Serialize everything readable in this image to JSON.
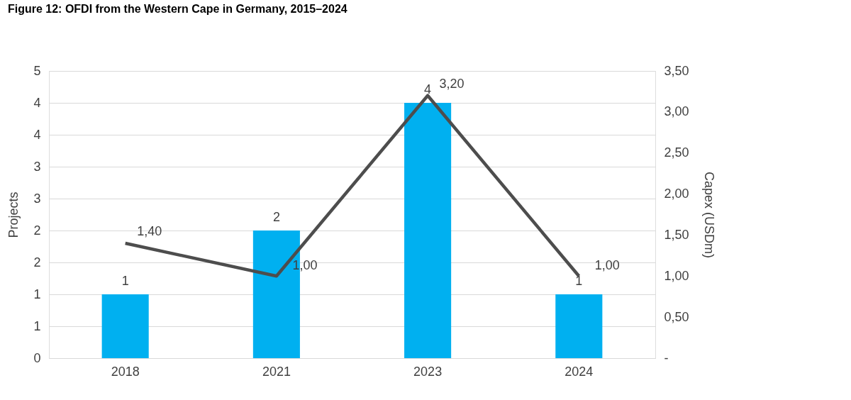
{
  "chart_data": {
    "type": "bar",
    "title": "Figure 12: OFDI from the Western Cape in Germany, 2015–2024",
    "categories": [
      "2018",
      "2021",
      "2023",
      "2024"
    ],
    "series": [
      {
        "color": "#00b0f0",
        "values": [
          1,
          2,
          4,
          1
        ],
        "value_labels": [
          "1",
          "2",
          "4",
          "1"
        ]
      },
      {
        "type": "line",
        "axis": "y2",
        "color": "#4d4d4d",
        "values": [
          1.4,
          1.0,
          3.2,
          1.0
        ],
        "value_labels": [
          "1,40",
          "1,00",
          "3,20",
          "1,00"
        ],
        "marker": "none"
      }
    ],
    "ylabel": "Projects",
    "y2label": "Capex (USDm)",
    "ylim": [
      0,
      4.5
    ],
    "yticks": [
      0,
      {
        "value": 0.5,
        "label": "1"
      },
      1,
      {
        "value": 1.5,
        "label": "2"
      },
      2,
      {
        "value": 2.5,
        "label": "3"
      },
      3,
      {
        "value": 3.5,
        "label": "4"
      },
      4,
      {
        "value": 4.5,
        "label": "5"
      }
    ],
    "y2lim": [
      0,
      3.5
    ],
    "y2ticks": [
      {
        "value": 0,
        "label": "-"
      },
      {
        "value": 0.5,
        "label": "0,50"
      },
      {
        "value": 1,
        "label": "1,00"
      },
      {
        "value": 1.5,
        "label": "1,50"
      },
      {
        "value": 2,
        "label": "2,00"
      },
      {
        "value": 2.5,
        "label": "2,50"
      },
      {
        "value": 3,
        "label": "3,00"
      },
      {
        "value": 3.5,
        "label": "3,50"
      }
    ],
    "grid": "y"
  }
}
